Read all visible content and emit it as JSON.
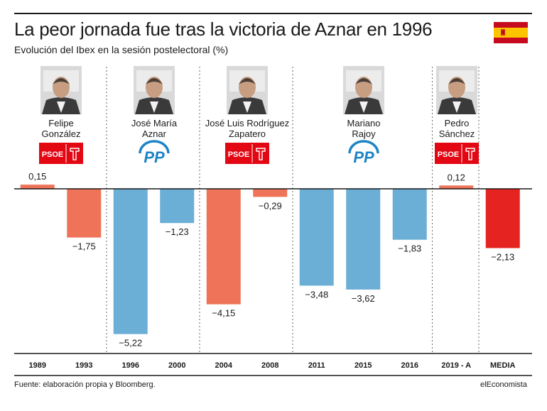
{
  "header": {
    "title": "La peor jornada fue tras la victoria de Aznar en 1996",
    "subtitle": "Evolución del Ibex en la sesión postelectoral (%)"
  },
  "colors": {
    "psoe": "#ee7358",
    "pp": "#6baed6",
    "media": "#e52421",
    "psoe_logo_bg": "#e30613",
    "pp_logo_blue": "#1d84c6",
    "flag_red": "#c60b1e",
    "flag_yellow": "#ffc400"
  },
  "leaders": [
    {
      "name_line1": "Felipe",
      "name_line2": "González",
      "party": "PSOE",
      "icon": "felipe-gonzalez-photo-icon"
    },
    {
      "name_line1": "José María",
      "name_line2": "Aznar",
      "party": "PP",
      "icon": "jose-maria-aznar-photo-icon"
    },
    {
      "name_line1": "José Luis Rodríguez",
      "name_line2": "Zapatero",
      "party": "PSOE",
      "icon": "zapatero-photo-icon"
    },
    {
      "name_line1": "Mariano",
      "name_line2": "Rajoy",
      "party": "PP",
      "icon": "mariano-rajoy-photo-icon"
    },
    {
      "name_line1": "Pedro",
      "name_line2": "Sánchez",
      "party": "PSOE",
      "icon": "pedro-sanchez-photo-icon"
    }
  ],
  "logos": {
    "psoe_text": "PSOE",
    "pp_text": "PP"
  },
  "chart_data": {
    "type": "bar",
    "title": "La peor jornada fue tras la victoria de Aznar en 1996",
    "subtitle": "Evolución del Ibex en la sesión postelectoral (%)",
    "categories": [
      "1989",
      "1993",
      "1996",
      "2000",
      "2004",
      "2008",
      "2011",
      "2015",
      "2016",
      "2019 - A",
      "MEDIA"
    ],
    "values": [
      0.15,
      -1.75,
      -5.22,
      -1.23,
      -4.15,
      -0.29,
      -3.48,
      -3.62,
      -1.83,
      0.12,
      -2.13
    ],
    "labels": [
      "0,15",
      "−1,75",
      "−5,22",
      "−1,23",
      "−4,15",
      "−0,29",
      "−3,48",
      "−3,62",
      "−1,83",
      "0,12",
      "−2,13"
    ],
    "parties": [
      "PSOE",
      "PSOE",
      "PP",
      "PP",
      "PSOE",
      "PSOE",
      "PP",
      "PP",
      "PP",
      "PSOE",
      "MEDIA"
    ],
    "xlabel": "",
    "ylabel": "%",
    "ylim": [
      -5.22,
      0.15
    ],
    "grid": false
  },
  "footer": {
    "source": "Fuente: elaboración propia y Bloomberg.",
    "brand": "elEconomista"
  }
}
